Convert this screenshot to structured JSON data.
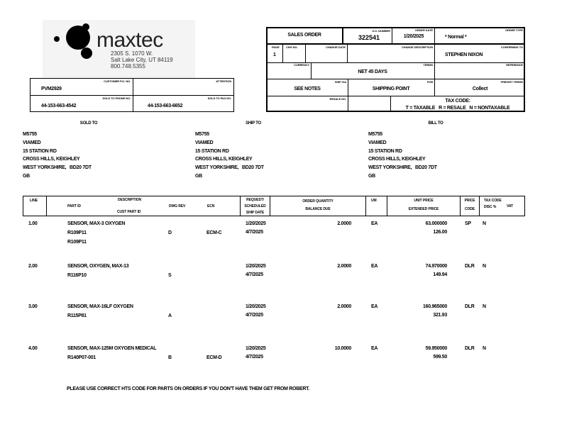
{
  "company": {
    "name": "maxtec",
    "address1": "2305 S. 1070 W.",
    "address2": "Salt Lake City, UT 84119",
    "phone": "800.748.5355"
  },
  "customer": {
    "po_label": "CUSTOMER P.O. NO.",
    "po": "PVM2929",
    "attention_label": "ATTENTION",
    "attention": "",
    "phone_label": "SOLD TO PHONE NO.",
    "phone": "44-153-663-4542",
    "fax_label": "SOLD TO FAX NO.",
    "fax": "44-153-663-6652"
  },
  "order": {
    "title": "SALES ORDER",
    "so_label": "S.O. NUMBER",
    "so": "322541",
    "date_label": "ORDER DATE",
    "date": "1/20/2025",
    "type_label": "ORDER TYPE",
    "type": "* Normal *",
    "page_label": "PAGE",
    "page": "1",
    "chg_no_label": "CHG NO.",
    "chg_date_label": "CHANGE DATE",
    "chg_desc_label": "CHANGE DESCRIPTION",
    "buyer_label": "CONFIRMING TO",
    "buyer": "STEPHEN NIXON",
    "currency_label": "CURRENCY",
    "terms_label": "TERMS",
    "terms": "NET 45 DAYS",
    "reference_label": "REFERENCE",
    "ship_via_label": "SHIP VIA",
    "ship_via": "SEE NOTES",
    "fob_label": "FOB",
    "fob": "SHIPPING POINT",
    "freight_label": "FREIGHT TERMS",
    "freight": "Collect",
    "resale_label": "RESALE NO.",
    "tax_title": "TAX CODE:",
    "tax_legend": "T = TAXABLE   R = RESALE   N = NONTAXABLE"
  },
  "addresses": [
    {
      "heading": "SOLD TO",
      "lines": [
        "M5755",
        "VIAMED",
        "15 STATION RD",
        "CROSS HILLS, KEIGHLEY",
        "WEST YORKSHIRE,   BD20 7DT",
        "GB"
      ]
    },
    {
      "heading": "SHIP TO",
      "lines": [
        "M5755",
        "VIAMED",
        "15 STATION RD",
        "CROSS HILLS, KEIGHLEY",
        "WEST YORKSHIRE,   BD20 7DT",
        "GB"
      ]
    },
    {
      "heading": "BILL TO",
      "lines": [
        "M5755",
        "VIAMED",
        "15 STATION RD",
        "CROSS HILLS, KEIGHLEY",
        "WEST YORKSHIRE,   BD20 7DT",
        "GB"
      ]
    }
  ],
  "table": {
    "headers": {
      "line": "LINE",
      "description": "DESCRIPTION",
      "part_id": "PART ID",
      "cust_part_id": "CUST PART ID",
      "dwg_rev": "DWG REV",
      "ecn": "ECN",
      "req1": "REQUEST/",
      "req2": "SCHEDULED",
      "req3": "SHIP DATE",
      "qty1": "ORDER QUANTITY",
      "qty2": "BALANCE DUE",
      "um": "UM",
      "price1": "UNIT PRICE",
      "price2": "EXTENDED PRICE",
      "pc1": "PRICE",
      "pc2": "CODE",
      "tax1": "TAX CODE",
      "tax2": "DISC %",
      "vat": "VAT"
    },
    "rows": [
      {
        "line": "1.00",
        "description": "SENSOR, MAX-3 OXYGEN",
        "part_id": "R109P11",
        "cust_part_id": "R109P11",
        "dwg_rev": "D",
        "ecn": "ECM-C",
        "request_date": "1/20/2025",
        "ship_date": "4/7/2025",
        "qty": "2.0000",
        "um": "EA",
        "unit_price": "63.000000",
        "extended": "126.00",
        "price_code": "SP",
        "tax": "N"
      },
      {
        "line": "2.00",
        "description": "SENSOR, OXYGEN, MAX-13",
        "part_id": "R116P10",
        "cust_part_id": "",
        "dwg_rev": "S",
        "ecn": "",
        "request_date": "1/20/2025",
        "ship_date": "4/7/2025",
        "qty": "2.0000",
        "um": "EA",
        "unit_price": "74.970000",
        "extended": "149.94",
        "price_code": "DLR",
        "tax": "N"
      },
      {
        "line": "3.00",
        "description": "SENSOR, MAX-16LF OXYGEN",
        "part_id": "R115P81",
        "cust_part_id": "",
        "dwg_rev": "A",
        "ecn": "",
        "request_date": "1/20/2025",
        "ship_date": "4/7/2025",
        "qty": "2.0000",
        "um": "EA",
        "unit_price": "160.965000",
        "extended": "321.93",
        "price_code": "DLR",
        "tax": "N"
      },
      {
        "line": "4.00",
        "description": "SENSOR, MAX-125M OXYGEN MEDICAL",
        "part_id": "R140P07-001",
        "cust_part_id": "",
        "dwg_rev": "B",
        "ecn": "ECM-D",
        "request_date": "1/20/2025",
        "ship_date": "4/7/2025",
        "qty": "10.0000",
        "um": "EA",
        "unit_price": "59.950000",
        "extended": "599.50",
        "price_code": "DLR",
        "tax": "N"
      }
    ]
  },
  "note": "PLEASE USE CORRECT HTS CODE FOR PARTS ON ORDERS IF YOU DON'T HAVE THEM GET FROM ROBERT."
}
